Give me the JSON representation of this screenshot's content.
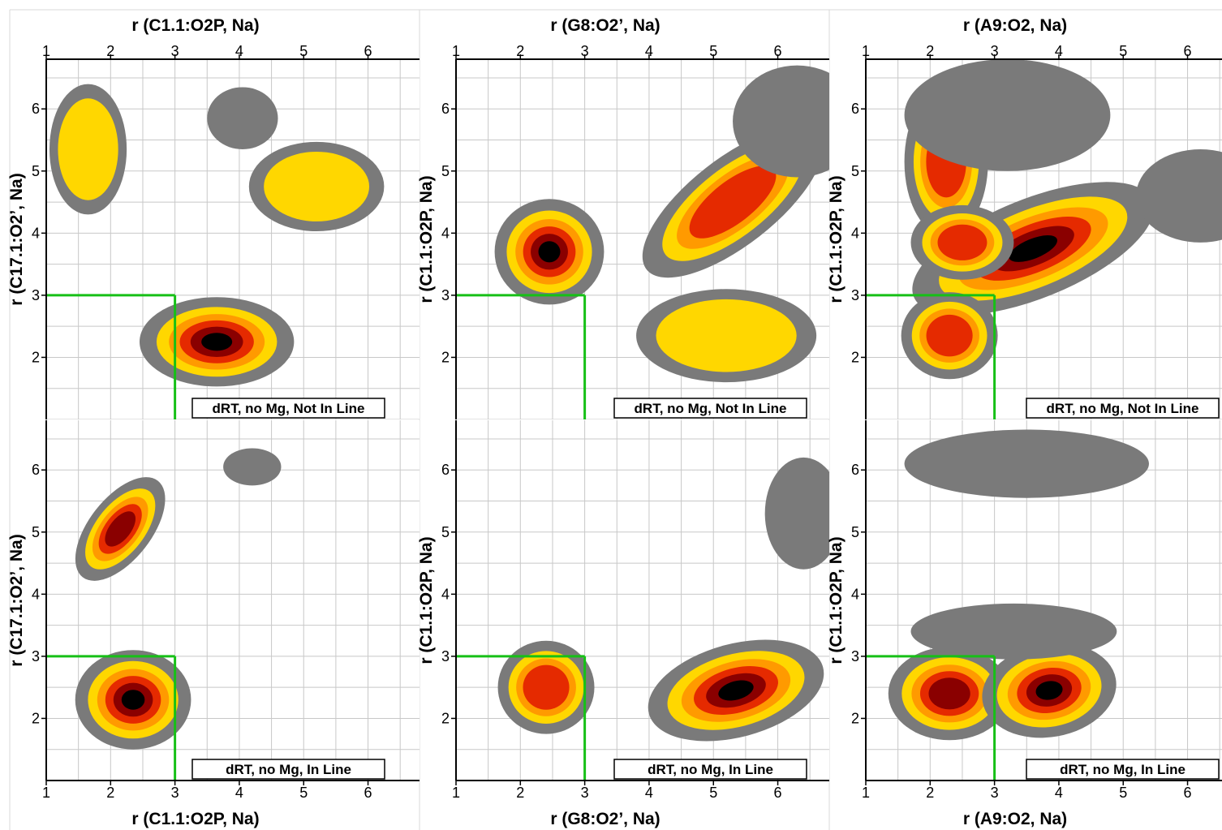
{
  "figure": {
    "grid": true,
    "colors": {
      "background": "#ffffff",
      "grid": "#c8c8c8",
      "level_0": "#7a7a7a",
      "level_1": "#ffd700",
      "level_2": "#ff9a00",
      "level_3": "#e52a00",
      "level_4": "#8a0000",
      "level_5": "#000000",
      "threshold": "#16c016",
      "panel_border": "#d8d8d8"
    }
  },
  "chart_data": [
    {
      "id": "top-left",
      "row": 0,
      "col": 0,
      "type": "heatmap",
      "xlabel": "r (C1.1:O2P, Na)",
      "ylabel": "r (C17.1:O2’, Na)",
      "x_ticks": [
        1,
        2,
        3,
        4,
        5,
        6
      ],
      "y_ticks": [
        2,
        3,
        4,
        5,
        6
      ],
      "xlim": [
        1,
        6.8
      ],
      "ylim": [
        1,
        6.8
      ],
      "threshold": [
        3,
        3
      ],
      "legend": "dRT, no Mg, Not In Line",
      "blobs": [
        {
          "cx": 3.65,
          "cy": 2.25,
          "rx": 1.2,
          "ry": 0.72,
          "angle": 0,
          "peak": 5
        },
        {
          "cx": 1.65,
          "cy": 5.35,
          "rx": 0.6,
          "ry": 1.05,
          "angle": 0,
          "peak": 1
        },
        {
          "cx": 5.2,
          "cy": 4.75,
          "rx": 1.05,
          "ry": 0.72,
          "angle": 0,
          "peak": 1
        },
        {
          "cx": 4.05,
          "cy": 5.85,
          "rx": 0.55,
          "ry": 0.5,
          "angle": 0,
          "peak": 0
        }
      ]
    },
    {
      "id": "top-middle",
      "row": 0,
      "col": 1,
      "type": "heatmap",
      "xlabel": "r (G8:O2’, Na)",
      "ylabel": "r (C1.1:O2P, Na)",
      "x_ticks": [
        1,
        2,
        3,
        4,
        5,
        6
      ],
      "y_ticks": [
        2,
        3,
        4,
        5,
        6
      ],
      "xlim": [
        1,
        6.8
      ],
      "ylim": [
        1,
        6.8
      ],
      "threshold": [
        3,
        3
      ],
      "legend": "dRT, no Mg, Not In Line",
      "blobs": [
        {
          "cx": 2.45,
          "cy": 3.7,
          "rx": 0.85,
          "ry": 0.85,
          "angle": 0,
          "peak": 5
        },
        {
          "cx": 5.3,
          "cy": 4.5,
          "rx": 1.7,
          "ry": 0.7,
          "angle": 38,
          "peak": 3
        },
        {
          "cx": 5.2,
          "cy": 2.35,
          "rx": 1.4,
          "ry": 0.75,
          "angle": 0,
          "peak": 1
        },
        {
          "cx": 6.3,
          "cy": 5.8,
          "rx": 1.0,
          "ry": 0.9,
          "angle": 0,
          "peak": 0
        }
      ]
    },
    {
      "id": "top-right",
      "row": 0,
      "col": 2,
      "type": "heatmap",
      "xlabel": "r (A9:O2, Na)",
      "ylabel": "r (C1.1:O2P, Na)",
      "x_ticks": [
        1,
        2,
        3,
        4,
        5,
        6
      ],
      "y_ticks": [
        2,
        3,
        4,
        5,
        6
      ],
      "xlim": [
        1,
        6.8
      ],
      "ylim": [
        1,
        6.8
      ],
      "threshold": [
        3,
        3
      ],
      "legend": "dRT, no Mg, Not In Line",
      "blobs": [
        {
          "cx": 3.6,
          "cy": 3.75,
          "rx": 2.0,
          "ry": 0.8,
          "angle": 22,
          "peak": 5
        },
        {
          "cx": 2.25,
          "cy": 5.15,
          "rx": 0.65,
          "ry": 1.2,
          "angle": 0,
          "peak": 3
        },
        {
          "cx": 2.3,
          "cy": 2.35,
          "rx": 0.75,
          "ry": 0.7,
          "angle": 0,
          "peak": 3
        },
        {
          "cx": 2.5,
          "cy": 3.85,
          "rx": 0.8,
          "ry": 0.6,
          "angle": 0,
          "peak": 3
        },
        {
          "cx": 6.2,
          "cy": 4.6,
          "rx": 1.0,
          "ry": 0.75,
          "angle": 0,
          "peak": 0
        },
        {
          "cx": 3.2,
          "cy": 5.9,
          "rx": 1.6,
          "ry": 0.9,
          "angle": 0,
          "peak": 0
        }
      ]
    },
    {
      "id": "bottom-left",
      "row": 1,
      "col": 0,
      "type": "heatmap",
      "xlabel": "r (C1.1:O2P, Na)",
      "ylabel": "r (C17.1:O2’, Na)",
      "x_ticks": [
        1,
        2,
        3,
        4,
        5,
        6
      ],
      "y_ticks": [
        2,
        3,
        4,
        5,
        6
      ],
      "xlim": [
        1,
        6.8
      ],
      "ylim": [
        1,
        6.8
      ],
      "threshold": [
        3,
        3
      ],
      "legend": "dRT, no Mg, In Line",
      "blobs": [
        {
          "cx": 2.35,
          "cy": 2.3,
          "rx": 0.9,
          "ry": 0.8,
          "angle": 0,
          "peak": 5
        },
        {
          "cx": 2.15,
          "cy": 5.05,
          "rx": 0.95,
          "ry": 0.5,
          "angle": 52,
          "peak": 4
        },
        {
          "cx": 4.2,
          "cy": 6.05,
          "rx": 0.45,
          "ry": 0.3,
          "angle": 0,
          "peak": 0
        }
      ]
    },
    {
      "id": "bottom-middle",
      "row": 1,
      "col": 1,
      "type": "heatmap",
      "xlabel": "r (G8:O2’, Na)",
      "ylabel": "r (C1.1:O2P, Na)",
      "x_ticks": [
        1,
        2,
        3,
        4,
        5,
        6
      ],
      "y_ticks": [
        2,
        3,
        4,
        5,
        6
      ],
      "xlim": [
        1,
        6.8
      ],
      "ylim": [
        1,
        6.8
      ],
      "threshold": [
        3,
        3
      ],
      "legend": "dRT, no Mg, In Line",
      "blobs": [
        {
          "cx": 2.4,
          "cy": 2.5,
          "rx": 0.75,
          "ry": 0.75,
          "angle": 0,
          "peak": 3
        },
        {
          "cx": 5.35,
          "cy": 2.45,
          "rx": 1.4,
          "ry": 0.75,
          "angle": 15,
          "peak": 5
        },
        {
          "cx": 6.4,
          "cy": 5.3,
          "rx": 0.6,
          "ry": 0.9,
          "angle": 0,
          "peak": 0
        }
      ]
    },
    {
      "id": "bottom-right",
      "row": 1,
      "col": 2,
      "type": "heatmap",
      "xlabel": "r (A9:O2, Na)",
      "ylabel": "r (C1.1:O2P, Na)",
      "x_ticks": [
        1,
        2,
        3,
        4,
        5,
        6
      ],
      "y_ticks": [
        2,
        3,
        4,
        5,
        6
      ],
      "xlim": [
        1,
        6.8
      ],
      "ylim": [
        1,
        6.8
      ],
      "threshold": [
        3,
        3
      ],
      "legend": "dRT, no Mg, In Line",
      "blobs": [
        {
          "cx": 2.3,
          "cy": 2.4,
          "rx": 0.95,
          "ry": 0.75,
          "angle": 0,
          "peak": 4
        },
        {
          "cx": 3.85,
          "cy": 2.45,
          "rx": 1.05,
          "ry": 0.75,
          "angle": 10,
          "peak": 5
        },
        {
          "cx": 3.3,
          "cy": 3.4,
          "rx": 1.6,
          "ry": 0.45,
          "angle": 0,
          "peak": 0
        },
        {
          "cx": 3.5,
          "cy": 6.1,
          "rx": 1.9,
          "ry": 0.55,
          "angle": 0,
          "peak": 0
        }
      ]
    }
  ]
}
